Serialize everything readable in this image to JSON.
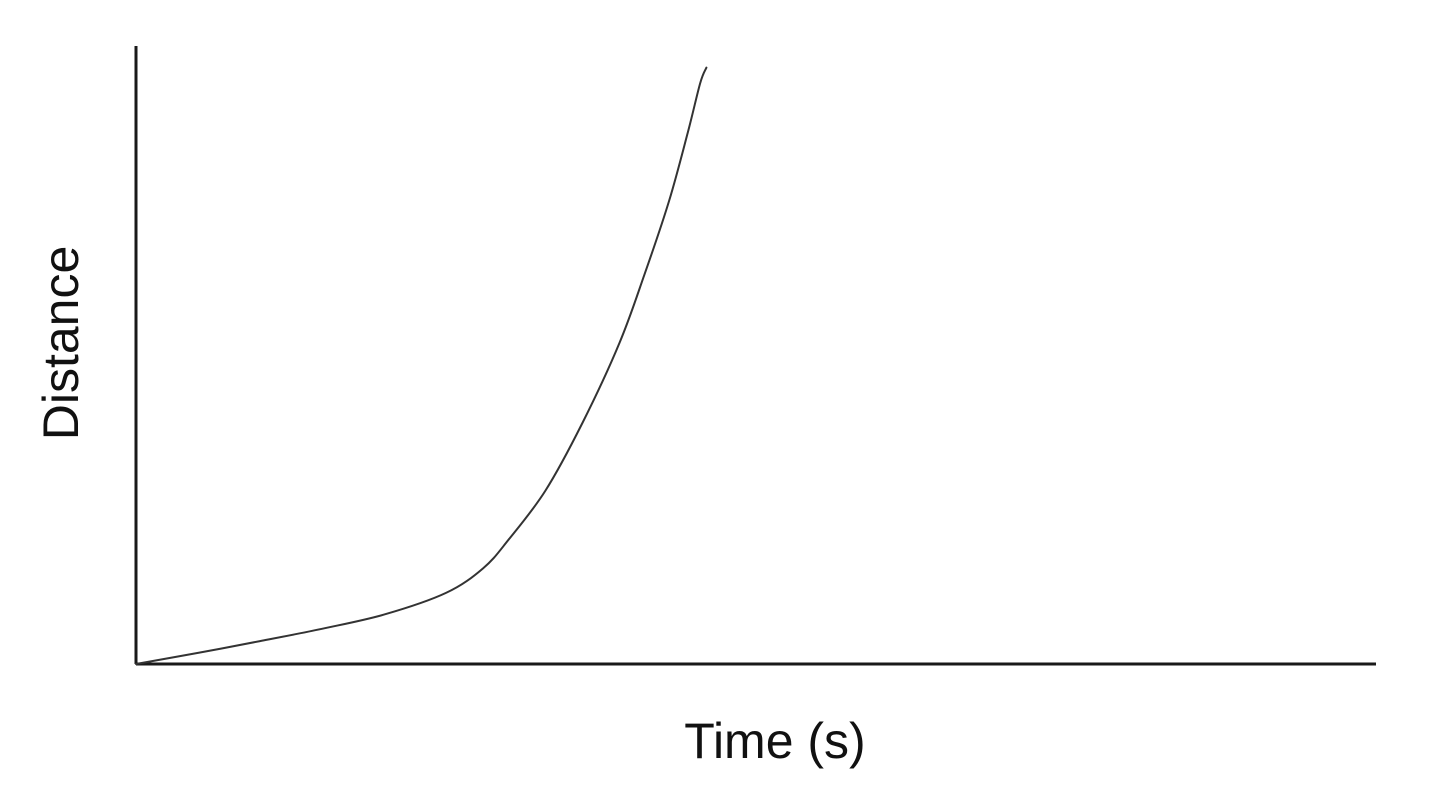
{
  "chart_data": {
    "type": "line",
    "title": "",
    "xlabel": "Time (s)",
    "ylabel": "Distance",
    "xlim": [
      0,
      10
    ],
    "ylim": [
      0,
      10
    ],
    "grid": false,
    "legend": "none",
    "tick_labels_shown": false,
    "series": [
      {
        "color": "#333333",
        "x": [
          0,
          0.5,
          1.0,
          1.5,
          2.0,
          2.5,
          2.8,
          3.0,
          3.3,
          3.6,
          3.9,
          4.1,
          4.3,
          4.45,
          4.55,
          4.6
        ],
        "y": [
          0,
          0.18,
          0.37,
          0.57,
          0.8,
          1.15,
          1.55,
          2.0,
          2.8,
          3.9,
          5.2,
          6.3,
          7.5,
          8.6,
          9.4,
          9.65
        ]
      }
    ]
  }
}
